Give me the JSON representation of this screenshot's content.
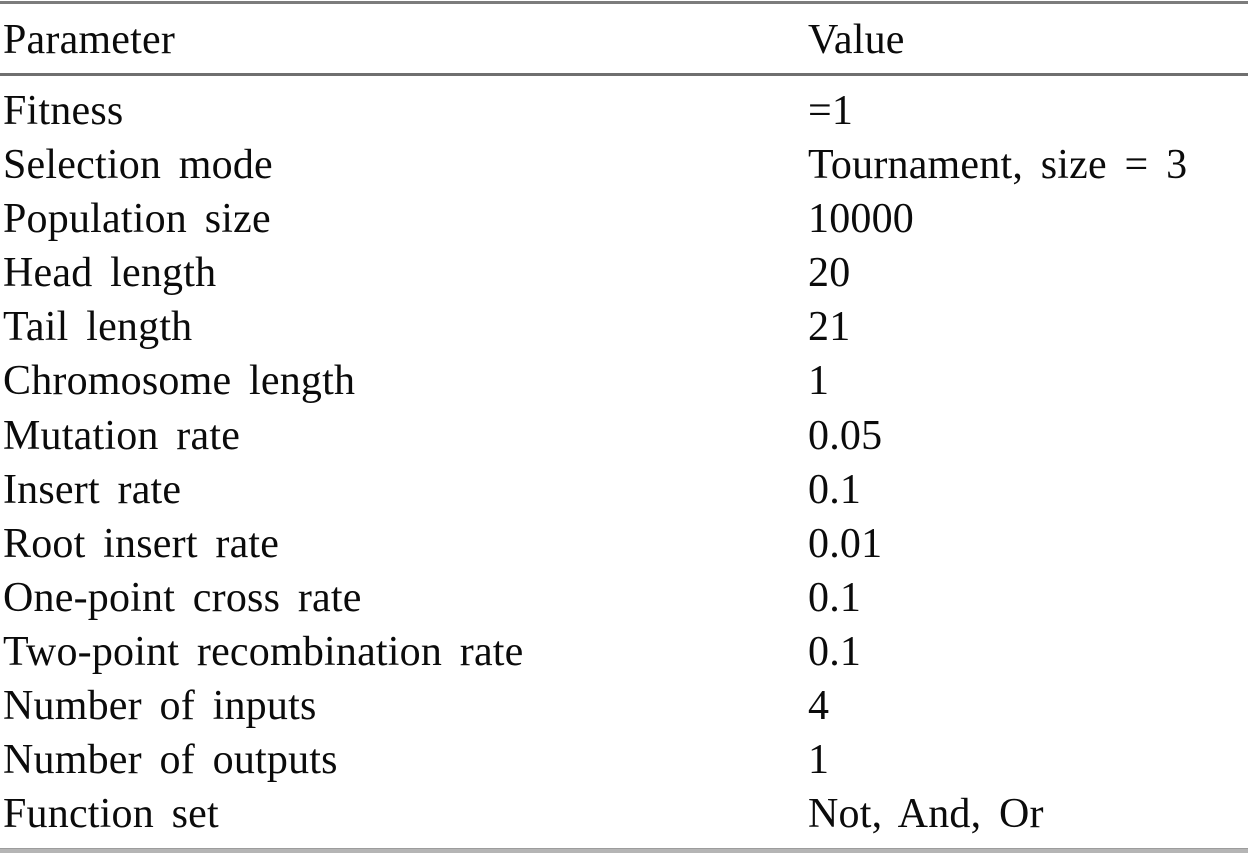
{
  "table": {
    "columns": [
      "Parameter",
      "Value"
    ],
    "rows": [
      [
        "Fitness",
        "=1"
      ],
      [
        "Selection mode",
        "Tournament, size = 3"
      ],
      [
        "Population size",
        "10000"
      ],
      [
        "Head length",
        "20"
      ],
      [
        "Tail length",
        "21"
      ],
      [
        "Chromosome length",
        "1"
      ],
      [
        "Mutation rate",
        "0.05"
      ],
      [
        "Insert rate",
        "0.1"
      ],
      [
        "Root insert rate",
        "0.01"
      ],
      [
        "One-point cross rate",
        "0.1"
      ],
      [
        "Two-point recombination rate",
        "0.1"
      ],
      [
        "Number of inputs",
        "4"
      ],
      [
        "Number of outputs",
        "1"
      ],
      [
        "Function set",
        "Not, And, Or"
      ]
    ]
  },
  "colors": {
    "background": "#ffffff",
    "text": "#0b0b0b",
    "rule_top": "#7c7c7c",
    "rule_header": "#6f6f6f",
    "rule_bottom": "#b5b5b5"
  }
}
